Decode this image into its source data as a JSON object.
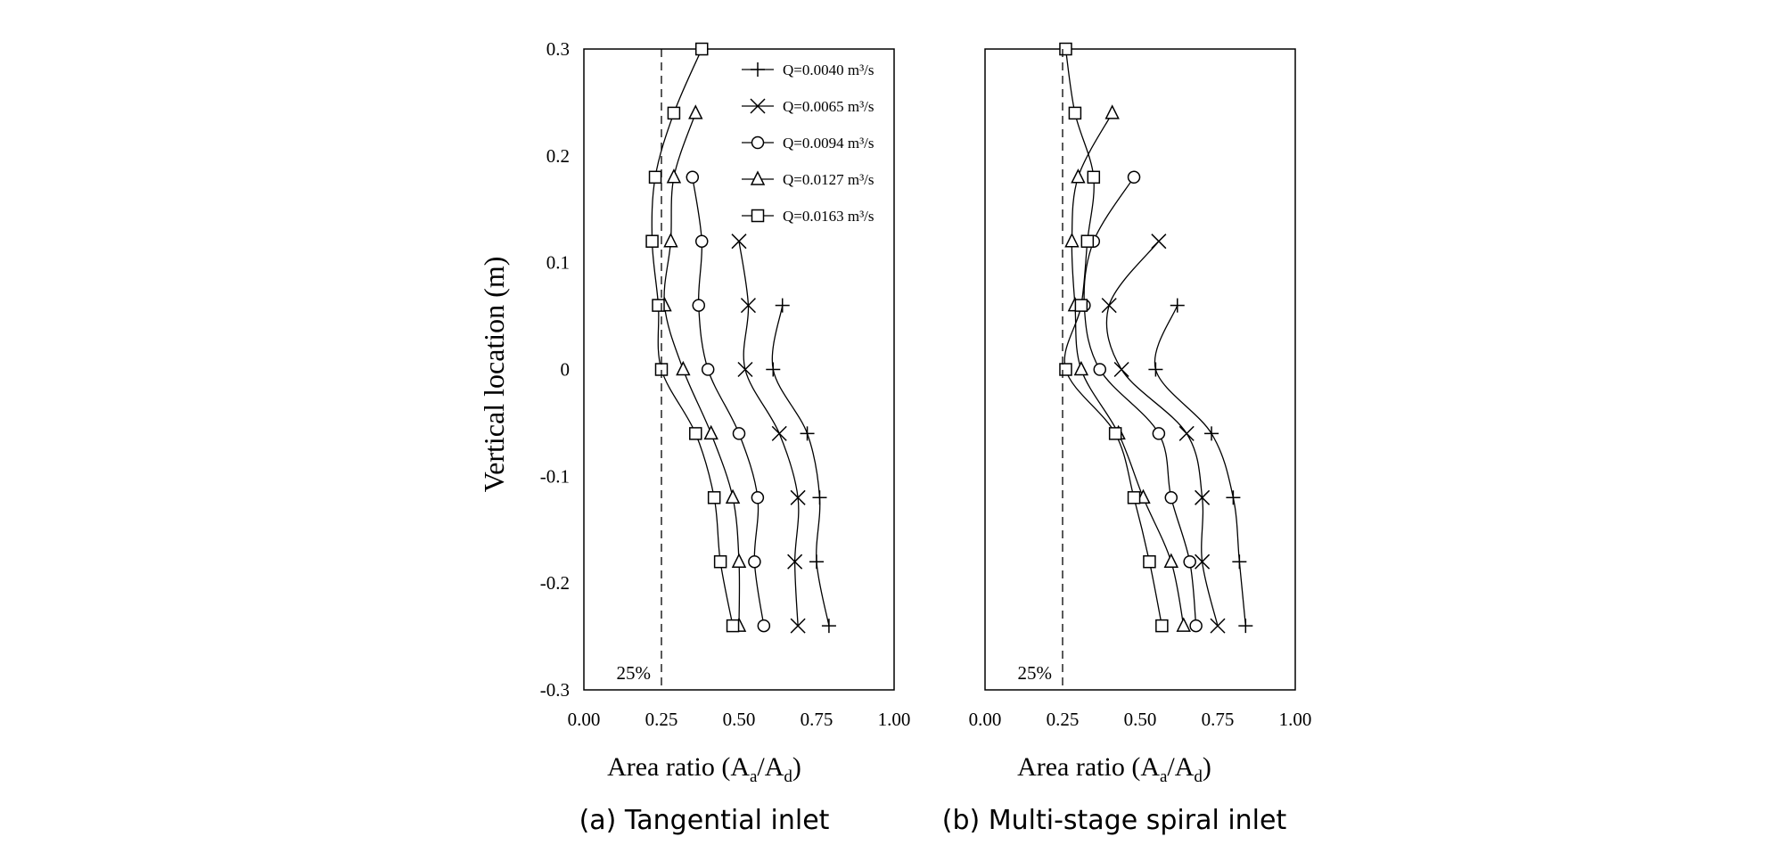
{
  "y_axis_label": "Vertical location (m)",
  "charts": [
    {
      "type": "line",
      "panel": "a",
      "caption": "(a) Tangential inlet",
      "x_label": "Area ratio (A",
      "x_label_sub1": "a",
      "x_label_mid": "/A",
      "x_label_sub2": "d",
      "x_label_end": ")",
      "reference": {
        "value": 0.25,
        "label": "25%"
      },
      "xlim": [
        0,
        1
      ],
      "ylim": [
        -0.3,
        0.3
      ],
      "x_ticks": [
        "0.00",
        "0.25",
        "0.50",
        "0.75",
        "1.00"
      ],
      "y_ticks": [
        "0.3",
        "0.2",
        "0.1",
        "0",
        "-0.1",
        "-0.2",
        "-0.3"
      ],
      "legend_position": "top-right",
      "series": [
        {
          "name": "Q=0.0040 m³/s",
          "marker": "plus",
          "points": [
            [
              0.64,
              0.06
            ],
            [
              0.61,
              0.0
            ],
            [
              0.72,
              -0.06
            ],
            [
              0.76,
              -0.12
            ],
            [
              0.75,
              -0.18
            ],
            [
              0.79,
              -0.24
            ]
          ]
        },
        {
          "name": "Q=0.0065 m³/s",
          "marker": "x",
          "points": [
            [
              0.5,
              0.12
            ],
            [
              0.53,
              0.06
            ],
            [
              0.52,
              0.0
            ],
            [
              0.63,
              -0.06
            ],
            [
              0.69,
              -0.12
            ],
            [
              0.68,
              -0.18
            ],
            [
              0.69,
              -0.24
            ]
          ]
        },
        {
          "name": "Q=0.0094 m³/s",
          "marker": "circle",
          "points": [
            [
              0.35,
              0.18
            ],
            [
              0.38,
              0.12
            ],
            [
              0.37,
              0.06
            ],
            [
              0.4,
              0.0
            ],
            [
              0.5,
              -0.06
            ],
            [
              0.56,
              -0.12
            ],
            [
              0.55,
              -0.18
            ],
            [
              0.58,
              -0.24
            ]
          ]
        },
        {
          "name": "Q=0.0127 m³/s",
          "marker": "triangle",
          "points": [
            [
              0.36,
              0.24
            ],
            [
              0.29,
              0.18
            ],
            [
              0.28,
              0.12
            ],
            [
              0.26,
              0.06
            ],
            [
              0.32,
              0.0
            ],
            [
              0.41,
              -0.06
            ],
            [
              0.48,
              -0.12
            ],
            [
              0.5,
              -0.18
            ],
            [
              0.5,
              -0.24
            ]
          ]
        },
        {
          "name": "Q=0.0163 m³/s",
          "marker": "square",
          "points": [
            [
              0.38,
              0.3
            ],
            [
              0.29,
              0.24
            ],
            [
              0.23,
              0.18
            ],
            [
              0.22,
              0.12
            ],
            [
              0.24,
              0.06
            ],
            [
              0.25,
              0.0
            ],
            [
              0.36,
              -0.06
            ],
            [
              0.42,
              -0.12
            ],
            [
              0.44,
              -0.18
            ],
            [
              0.48,
              -0.24
            ]
          ]
        }
      ]
    },
    {
      "type": "line",
      "panel": "b",
      "caption": "(b) Multi-stage spiral inlet",
      "x_label": "Area ratio (A",
      "x_label_sub1": "a",
      "x_label_mid": "/A",
      "x_label_sub2": "d",
      "x_label_end": ")",
      "reference": {
        "value": 0.25,
        "label": "25%"
      },
      "xlim": [
        0,
        1
      ],
      "ylim": [
        -0.3,
        0.3
      ],
      "x_ticks": [
        "0.00",
        "0.25",
        "0.50",
        "0.75",
        "1.00"
      ],
      "y_ticks": [],
      "series": [
        {
          "name": "Q=0.0040 m³/s",
          "marker": "plus",
          "points": [
            [
              0.62,
              0.06
            ],
            [
              0.55,
              0.0
            ],
            [
              0.73,
              -0.06
            ],
            [
              0.8,
              -0.12
            ],
            [
              0.82,
              -0.18
            ],
            [
              0.84,
              -0.24
            ]
          ]
        },
        {
          "name": "Q=0.0065 m³/s",
          "marker": "x",
          "points": [
            [
              0.56,
              0.12
            ],
            [
              0.4,
              0.06
            ],
            [
              0.44,
              0.0
            ],
            [
              0.65,
              -0.06
            ],
            [
              0.7,
              -0.12
            ],
            [
              0.7,
              -0.18
            ],
            [
              0.75,
              -0.24
            ]
          ]
        },
        {
          "name": "Q=0.0094 m³/s",
          "marker": "circle",
          "points": [
            [
              0.48,
              0.18
            ],
            [
              0.35,
              0.12
            ],
            [
              0.32,
              0.06
            ],
            [
              0.37,
              0.0
            ],
            [
              0.56,
              -0.06
            ],
            [
              0.6,
              -0.12
            ],
            [
              0.66,
              -0.18
            ],
            [
              0.68,
              -0.24
            ]
          ]
        },
        {
          "name": "Q=0.0127 m³/s",
          "marker": "triangle",
          "points": [
            [
              0.41,
              0.24
            ],
            [
              0.3,
              0.18
            ],
            [
              0.28,
              0.12
            ],
            [
              0.29,
              0.06
            ],
            [
              0.31,
              0.0
            ],
            [
              0.43,
              -0.06
            ],
            [
              0.51,
              -0.12
            ],
            [
              0.6,
              -0.18
            ],
            [
              0.64,
              -0.24
            ]
          ]
        },
        {
          "name": "Q=0.0163 m³/s",
          "marker": "square",
          "points": [
            [
              0.26,
              0.3
            ],
            [
              0.29,
              0.24
            ],
            [
              0.35,
              0.18
            ],
            [
              0.33,
              0.12
            ],
            [
              0.31,
              0.06
            ],
            [
              0.26,
              0.0
            ],
            [
              0.42,
              -0.06
            ],
            [
              0.48,
              -0.12
            ],
            [
              0.53,
              -0.18
            ],
            [
              0.57,
              -0.24
            ]
          ]
        }
      ]
    }
  ]
}
